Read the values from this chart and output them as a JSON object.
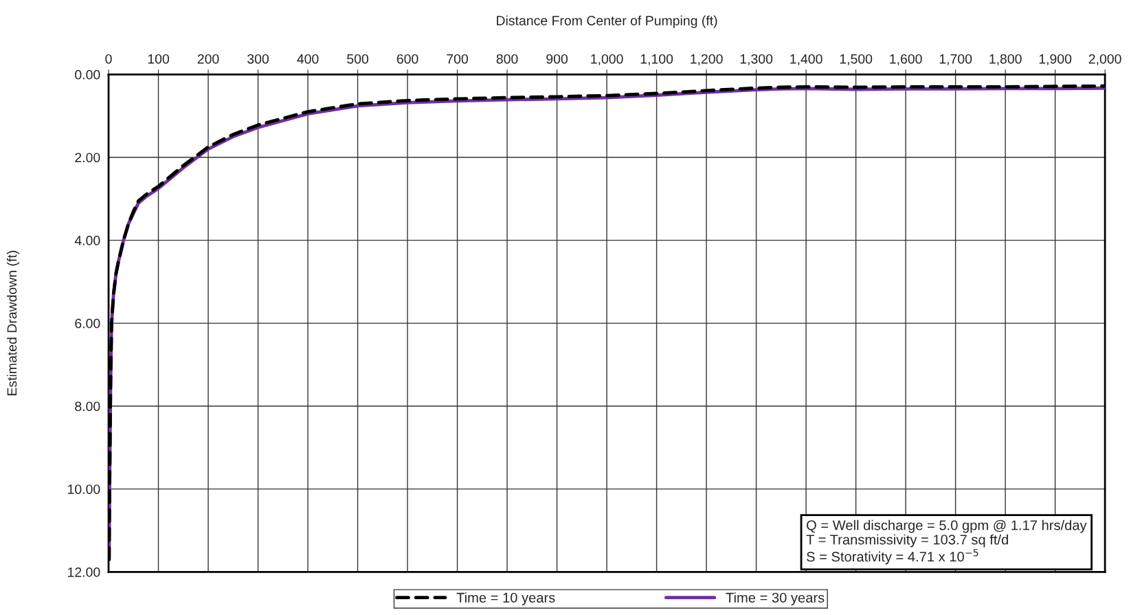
{
  "chart_data": {
    "type": "line",
    "xlabel": "Distance From Center of Pumping (ft)",
    "ylabel": "Estimated Drawdown (ft)",
    "x": [
      1,
      2,
      4,
      6,
      10,
      15,
      20,
      30,
      40,
      50,
      60,
      75,
      100,
      150,
      200,
      250,
      300,
      400,
      500,
      600,
      700,
      800,
      900,
      1000,
      1100,
      1200,
      1300,
      1350,
      1400,
      1500,
      1600,
      1700,
      1800,
      1900,
      2000
    ],
    "series": [
      {
        "name": "Time = 10 years",
        "color": "#000000",
        "line_style": "dashed",
        "values": [
          11.7,
          10.0,
          7.5,
          6.0,
          5.3,
          4.8,
          4.5,
          4.0,
          3.6,
          3.3,
          3.05,
          2.9,
          2.7,
          2.2,
          1.75,
          1.45,
          1.22,
          0.9,
          0.71,
          0.63,
          0.59,
          0.56,
          0.54,
          0.51,
          0.46,
          0.39,
          0.33,
          0.31,
          0.3,
          0.31,
          0.3,
          0.3,
          0.3,
          0.29,
          0.28
        ]
      },
      {
        "name": "Time = 30 years",
        "color": "#7030a0",
        "line_style": "solid",
        "values": [
          11.7,
          10.0,
          7.5,
          6.0,
          5.3,
          4.8,
          4.5,
          4.0,
          3.6,
          3.35,
          3.1,
          2.95,
          2.75,
          2.25,
          1.8,
          1.5,
          1.28,
          0.95,
          0.76,
          0.68,
          0.64,
          0.61,
          0.59,
          0.56,
          0.5,
          0.43,
          0.37,
          0.35,
          0.34,
          0.36,
          0.35,
          0.35,
          0.34,
          0.34,
          0.33
        ]
      }
    ],
    "xlim": [
      0,
      2000
    ],
    "xticks": [
      0,
      100,
      200,
      300,
      400,
      500,
      600,
      700,
      800,
      900,
      {
        "value": 1000,
        "label": "1,000"
      },
      {
        "value": 1100,
        "label": "1,100"
      },
      {
        "value": 1200,
        "label": "1,200"
      },
      {
        "value": 1300,
        "label": "1,300"
      },
      {
        "value": 1400,
        "label": "1,400"
      },
      {
        "value": 1500,
        "label": "1,500"
      },
      {
        "value": 1600,
        "label": "1,600"
      },
      {
        "value": 1700,
        "label": "1,700"
      },
      {
        "value": 1800,
        "label": "1,800"
      },
      {
        "value": 1900,
        "label": "1,900"
      },
      {
        "value": 2000,
        "label": "2,000"
      }
    ],
    "ylim": [
      12,
      0
    ],
    "yticks": [
      {
        "value": 0,
        "label": "0.00"
      },
      {
        "value": 2,
        "label": "2.00"
      },
      {
        "value": 4,
        "label": "4.00"
      },
      {
        "value": 6,
        "label": "6.00"
      },
      {
        "value": 8,
        "label": "8.00"
      },
      {
        "value": 10,
        "label": "10.00"
      },
      {
        "value": 12,
        "label": "12.00"
      }
    ],
    "grid": true,
    "legend": "bottom",
    "marker": "none",
    "annotations": [
      "Q = Well discharge = 5.0 gpm @ 1.17 hrs/day\nT = Transmissivity = 103.7 sq ft/d\nS = Storativity = 4.71 x 10$^{−5}$"
    ]
  }
}
